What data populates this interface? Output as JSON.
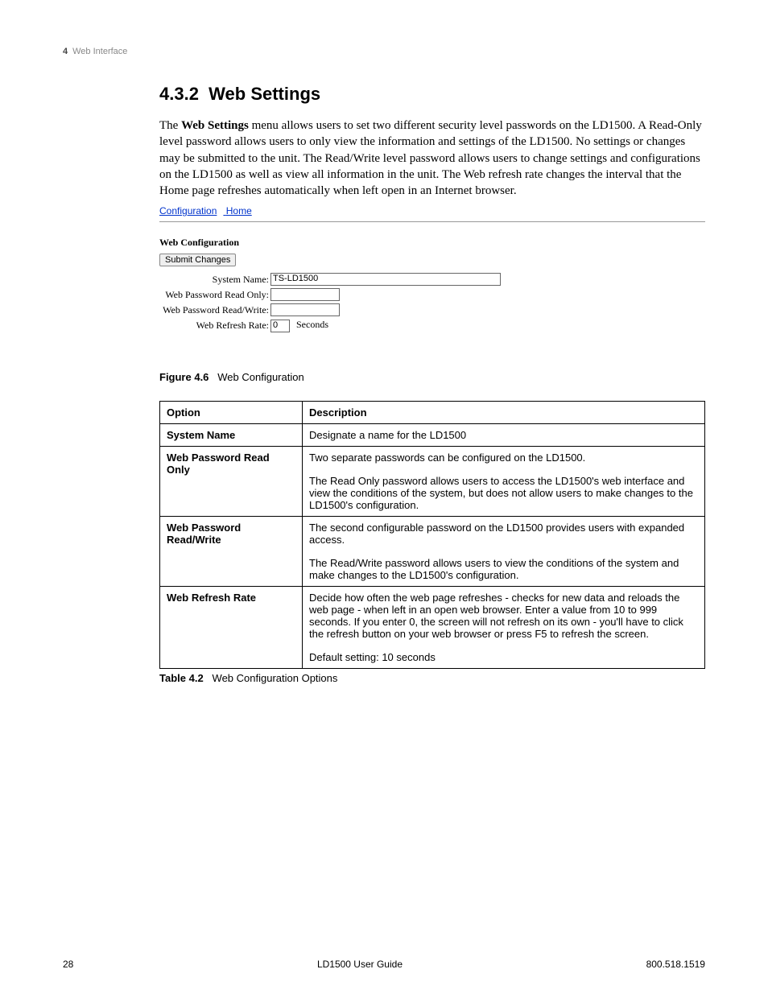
{
  "header": {
    "chapter_num": "4",
    "chapter_title": "Web Interface"
  },
  "section": {
    "number": "4.3.2",
    "title": "Web Settings"
  },
  "intro": {
    "pre": "The ",
    "bold": "Web Settings",
    "post": " menu allows users to set two different security level passwords on the LD1500. A Read-Only level password allows users to only view the information and settings of the LD1500. No settings or changes may be submitted to the unit. The Read/Write level password allows users to change settings and configurations on the LD1500 as well as view all information in the unit. The Web refresh rate changes the interval that the Home page refreshes automatically when left open in an Internet browser."
  },
  "webconfig": {
    "links": {
      "configuration": "Configuration",
      "home": "Home"
    },
    "heading": "Web Configuration",
    "submit": "Submit Changes",
    "rows": {
      "system_name": {
        "label": "System Name:",
        "value": "TS-LD1500"
      },
      "pwd_ro": {
        "label": "Web Password Read Only:",
        "value": ""
      },
      "pwd_rw": {
        "label": "Web Password Read/Write:",
        "value": ""
      },
      "refresh": {
        "label": "Web Refresh Rate:",
        "value": "0",
        "unit": "Seconds"
      }
    }
  },
  "figure": {
    "label": "Figure 4.6",
    "caption": "Web Configuration"
  },
  "table": {
    "headers": {
      "option": "Option",
      "description": "Description"
    },
    "rows": [
      {
        "option": "System Name",
        "desc": [
          "Designate a name for the LD1500"
        ]
      },
      {
        "option": "Web Password Read Only",
        "desc": [
          "Two separate passwords can be configured on the LD1500.",
          "The Read Only password allows users to access the LD1500's web interface and view the conditions of the system, but does not allow users to make changes to the LD1500's configuration."
        ]
      },
      {
        "option": "Web Password Read/Write",
        "desc": [
          "The second configurable password on the LD1500 provides users with expanded access.",
          "The Read/Write password allows users to view the conditions of the system and make changes to the LD1500's configuration."
        ]
      },
      {
        "option": "Web Refresh Rate",
        "desc": [
          "Decide how often the web page refreshes - checks for new data and reloads the web page - when left in an open web browser. Enter a value from 10 to 999 seconds. If you enter 0, the screen will not refresh on its own - you'll have to click the refresh button on your web browser or press F5 to refresh the screen.",
          "Default setting: 10 seconds"
        ]
      }
    ]
  },
  "table_caption": {
    "label": "Table 4.2",
    "caption": "Web Configuration Options"
  },
  "footer": {
    "page": "28",
    "center": "LD1500 User Guide",
    "right": "800.518.1519"
  }
}
